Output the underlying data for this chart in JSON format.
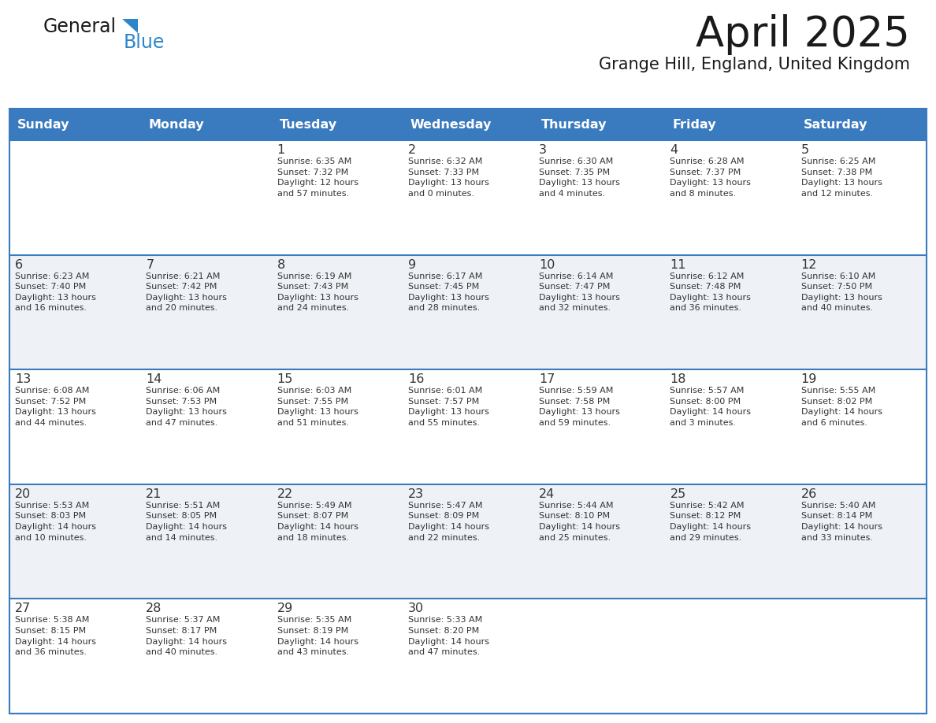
{
  "title": "April 2025",
  "subtitle": "Grange Hill, England, United Kingdom",
  "header_bg_color": "#3a7abf",
  "header_text_color": "#ffffff",
  "cell_bg_alt": "#eef2f7",
  "cell_bg_white": "#ffffff",
  "text_color": "#333333",
  "border_color": "#3a7abf",
  "days_of_week": [
    "Sunday",
    "Monday",
    "Tuesday",
    "Wednesday",
    "Thursday",
    "Friday",
    "Saturday"
  ],
  "weeks": [
    [
      {
        "day": "",
        "info": ""
      },
      {
        "day": "",
        "info": ""
      },
      {
        "day": "1",
        "info": "Sunrise: 6:35 AM\nSunset: 7:32 PM\nDaylight: 12 hours\nand 57 minutes."
      },
      {
        "day": "2",
        "info": "Sunrise: 6:32 AM\nSunset: 7:33 PM\nDaylight: 13 hours\nand 0 minutes."
      },
      {
        "day": "3",
        "info": "Sunrise: 6:30 AM\nSunset: 7:35 PM\nDaylight: 13 hours\nand 4 minutes."
      },
      {
        "day": "4",
        "info": "Sunrise: 6:28 AM\nSunset: 7:37 PM\nDaylight: 13 hours\nand 8 minutes."
      },
      {
        "day": "5",
        "info": "Sunrise: 6:25 AM\nSunset: 7:38 PM\nDaylight: 13 hours\nand 12 minutes."
      }
    ],
    [
      {
        "day": "6",
        "info": "Sunrise: 6:23 AM\nSunset: 7:40 PM\nDaylight: 13 hours\nand 16 minutes."
      },
      {
        "day": "7",
        "info": "Sunrise: 6:21 AM\nSunset: 7:42 PM\nDaylight: 13 hours\nand 20 minutes."
      },
      {
        "day": "8",
        "info": "Sunrise: 6:19 AM\nSunset: 7:43 PM\nDaylight: 13 hours\nand 24 minutes."
      },
      {
        "day": "9",
        "info": "Sunrise: 6:17 AM\nSunset: 7:45 PM\nDaylight: 13 hours\nand 28 minutes."
      },
      {
        "day": "10",
        "info": "Sunrise: 6:14 AM\nSunset: 7:47 PM\nDaylight: 13 hours\nand 32 minutes."
      },
      {
        "day": "11",
        "info": "Sunrise: 6:12 AM\nSunset: 7:48 PM\nDaylight: 13 hours\nand 36 minutes."
      },
      {
        "day": "12",
        "info": "Sunrise: 6:10 AM\nSunset: 7:50 PM\nDaylight: 13 hours\nand 40 minutes."
      }
    ],
    [
      {
        "day": "13",
        "info": "Sunrise: 6:08 AM\nSunset: 7:52 PM\nDaylight: 13 hours\nand 44 minutes."
      },
      {
        "day": "14",
        "info": "Sunrise: 6:06 AM\nSunset: 7:53 PM\nDaylight: 13 hours\nand 47 minutes."
      },
      {
        "day": "15",
        "info": "Sunrise: 6:03 AM\nSunset: 7:55 PM\nDaylight: 13 hours\nand 51 minutes."
      },
      {
        "day": "16",
        "info": "Sunrise: 6:01 AM\nSunset: 7:57 PM\nDaylight: 13 hours\nand 55 minutes."
      },
      {
        "day": "17",
        "info": "Sunrise: 5:59 AM\nSunset: 7:58 PM\nDaylight: 13 hours\nand 59 minutes."
      },
      {
        "day": "18",
        "info": "Sunrise: 5:57 AM\nSunset: 8:00 PM\nDaylight: 14 hours\nand 3 minutes."
      },
      {
        "day": "19",
        "info": "Sunrise: 5:55 AM\nSunset: 8:02 PM\nDaylight: 14 hours\nand 6 minutes."
      }
    ],
    [
      {
        "day": "20",
        "info": "Sunrise: 5:53 AM\nSunset: 8:03 PM\nDaylight: 14 hours\nand 10 minutes."
      },
      {
        "day": "21",
        "info": "Sunrise: 5:51 AM\nSunset: 8:05 PM\nDaylight: 14 hours\nand 14 minutes."
      },
      {
        "day": "22",
        "info": "Sunrise: 5:49 AM\nSunset: 8:07 PM\nDaylight: 14 hours\nand 18 minutes."
      },
      {
        "day": "23",
        "info": "Sunrise: 5:47 AM\nSunset: 8:09 PM\nDaylight: 14 hours\nand 22 minutes."
      },
      {
        "day": "24",
        "info": "Sunrise: 5:44 AM\nSunset: 8:10 PM\nDaylight: 14 hours\nand 25 minutes."
      },
      {
        "day": "25",
        "info": "Sunrise: 5:42 AM\nSunset: 8:12 PM\nDaylight: 14 hours\nand 29 minutes."
      },
      {
        "day": "26",
        "info": "Sunrise: 5:40 AM\nSunset: 8:14 PM\nDaylight: 14 hours\nand 33 minutes."
      }
    ],
    [
      {
        "day": "27",
        "info": "Sunrise: 5:38 AM\nSunset: 8:15 PM\nDaylight: 14 hours\nand 36 minutes."
      },
      {
        "day": "28",
        "info": "Sunrise: 5:37 AM\nSunset: 8:17 PM\nDaylight: 14 hours\nand 40 minutes."
      },
      {
        "day": "29",
        "info": "Sunrise: 5:35 AM\nSunset: 8:19 PM\nDaylight: 14 hours\nand 43 minutes."
      },
      {
        "day": "30",
        "info": "Sunrise: 5:33 AM\nSunset: 8:20 PM\nDaylight: 14 hours\nand 47 minutes."
      },
      {
        "day": "",
        "info": ""
      },
      {
        "day": "",
        "info": ""
      },
      {
        "day": "",
        "info": ""
      }
    ]
  ],
  "logo_text1": "General",
  "logo_text2": "Blue",
  "logo_color1": "#1a1a1a",
  "logo_color2": "#2d86c9",
  "logo_triangle_color": "#2d86c9"
}
